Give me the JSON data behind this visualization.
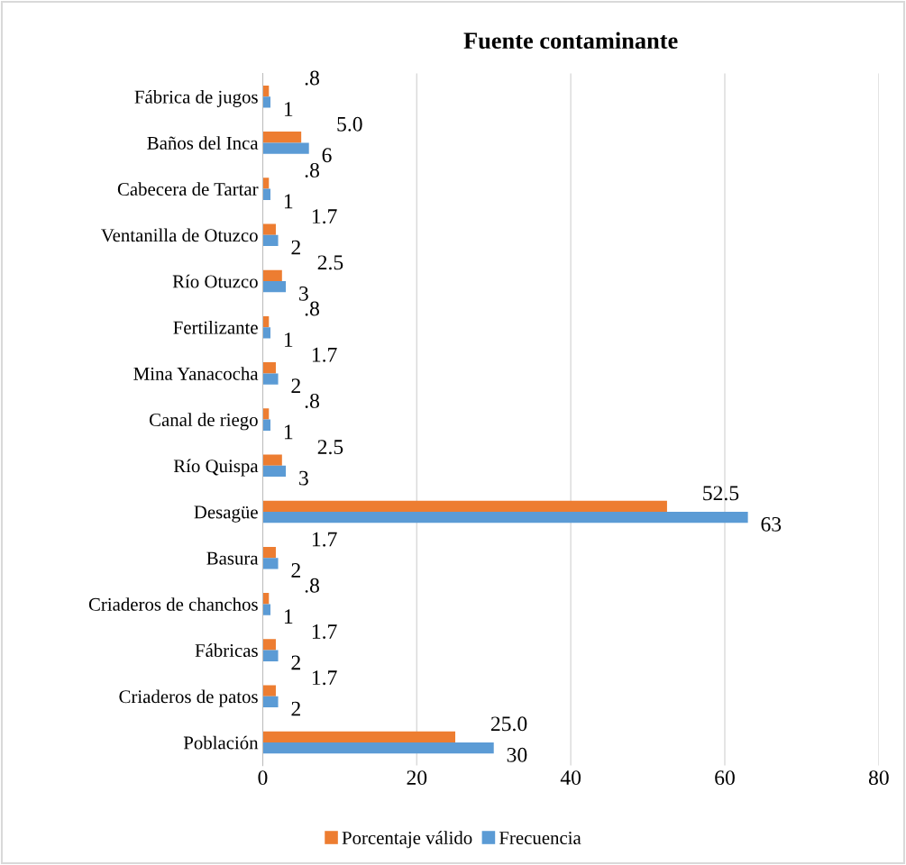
{
  "chart_data": {
    "type": "bar",
    "orientation": "horizontal",
    "title": "Fuente contaminante",
    "categories": [
      "Fábrica de jugos",
      "Baños del Inca",
      "Cabecera de Tartar",
      "Ventanilla de Otuzco",
      "Río Otuzco",
      "Fertilizante",
      "Mina Yanacocha",
      "Canal de riego",
      "Río Quispa",
      "Desagüe",
      "Basura",
      "Criaderos de chanchos",
      "Fábricas",
      "Criaderos de patos",
      "Población"
    ],
    "series": [
      {
        "name": "Porcentaje válido",
        "color": "#ed7d31",
        "values": [
          0.8,
          5.0,
          0.8,
          1.7,
          2.5,
          0.8,
          1.7,
          0.8,
          2.5,
          52.5,
          1.7,
          0.8,
          1.7,
          1.7,
          25.0
        ],
        "value_labels": [
          ".8",
          "5.0",
          ".8",
          "1.7",
          "2.5",
          ".8",
          "1.7",
          ".8",
          "2.5",
          "52.5",
          "1.7",
          ".8",
          "1.7",
          "1.7",
          "25.0"
        ]
      },
      {
        "name": "Frecuencia",
        "color": "#5b9bd5",
        "values": [
          1,
          6,
          1,
          2,
          3,
          1,
          2,
          1,
          3,
          63,
          2,
          1,
          2,
          2,
          30
        ],
        "value_labels": [
          "1",
          "6",
          "1",
          "2",
          "3",
          "1",
          "2",
          "1",
          "3",
          "63",
          "2",
          "1",
          "2",
          "2",
          "30"
        ]
      }
    ],
    "xlim": [
      0,
      80
    ],
    "xticks": [
      0,
      20,
      40,
      60,
      80
    ],
    "grid": "x",
    "legend": "bottom"
  }
}
